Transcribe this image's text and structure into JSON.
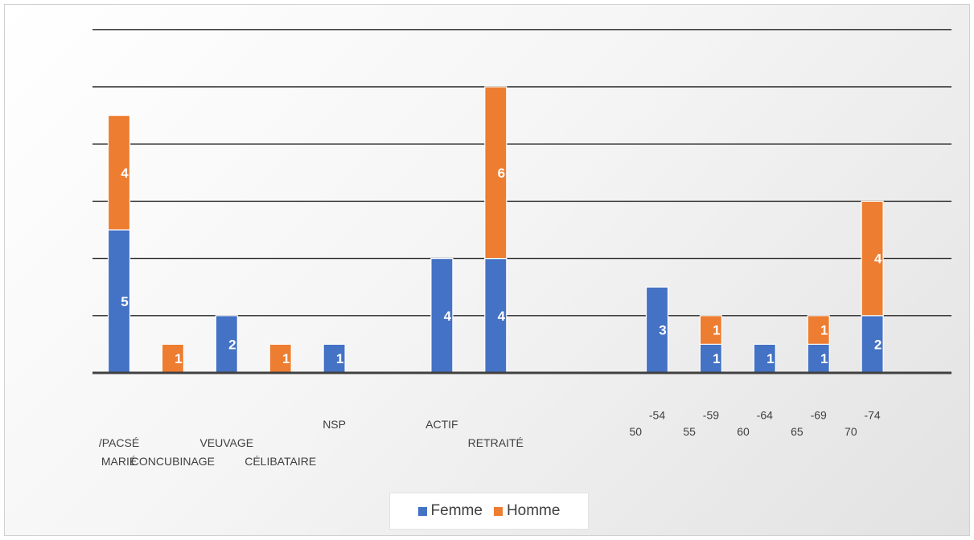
{
  "chart_data": {
    "type": "bar",
    "stacked": true,
    "ylim": [
      0,
      12
    ],
    "grid": true,
    "legend_position": "bottom",
    "categories": [
      "MARIÉ /PACSÉ",
      "CONCUBINAGE",
      "VEUVAGE",
      "CÉLIBATAIRE",
      "NSP",
      "",
      "ACTIF",
      "RETRAITÉ",
      "",
      "",
      "50 -54",
      "55 -59",
      "60 -64",
      "65 -69",
      "70 -74"
    ],
    "series": [
      {
        "name": "Femme",
        "color": "#4472C4",
        "values": [
          5,
          0,
          2,
          0,
          1,
          null,
          4,
          4,
          null,
          null,
          3,
          1,
          1,
          1,
          2
        ]
      },
      {
        "name": "Homme",
        "color": "#ED7D31",
        "values": [
          4,
          1,
          0,
          1,
          0,
          null,
          0,
          6,
          null,
          null,
          0,
          1,
          0,
          1,
          4
        ]
      }
    ],
    "x_tick_labels": [
      {
        "text": "MARIÉ",
        "cat": 0,
        "row": 3
      },
      {
        "text": "/PACSÉ",
        "cat": 0,
        "row": 2
      },
      {
        "text": "CONCUBINAGE",
        "cat": 1,
        "row": 3
      },
      {
        "text": "VEUVAGE",
        "cat": 2,
        "row": 2
      },
      {
        "text": "CÉLIBATAIRE",
        "cat": 3,
        "row": 3
      },
      {
        "text": "NSP",
        "cat": 4,
        "row": 1
      },
      {
        "text": "ACTIF",
        "cat": 6,
        "row": 1
      },
      {
        "text": "RETRAITÉ",
        "cat": 7,
        "row": 2
      },
      {
        "text": "50",
        "cat": 10,
        "row": 1.4,
        "dx": -0.4
      },
      {
        "text": "-54",
        "cat": 10,
        "row": 0.5,
        "dx": 0
      },
      {
        "text": "55",
        "cat": 11,
        "row": 1.4,
        "dx": -0.4
      },
      {
        "text": "-59",
        "cat": 11,
        "row": 0.5,
        "dx": 0
      },
      {
        "text": "60",
        "cat": 12,
        "row": 1.4,
        "dx": -0.4
      },
      {
        "text": "-64",
        "cat": 12,
        "row": 0.5,
        "dx": 0
      },
      {
        "text": "65",
        "cat": 13,
        "row": 1.4,
        "dx": -0.4
      },
      {
        "text": "-69",
        "cat": 13,
        "row": 0.5,
        "dx": 0
      },
      {
        "text": "70",
        "cat": 14,
        "row": 1.4,
        "dx": -0.4
      },
      {
        "text": "-74",
        "cat": 14,
        "row": 0.5,
        "dx": 0
      }
    ]
  },
  "legend": {
    "items": [
      {
        "label": "Femme",
        "color": "#4472C4"
      },
      {
        "label": "Homme",
        "color": "#ED7D31"
      }
    ]
  }
}
